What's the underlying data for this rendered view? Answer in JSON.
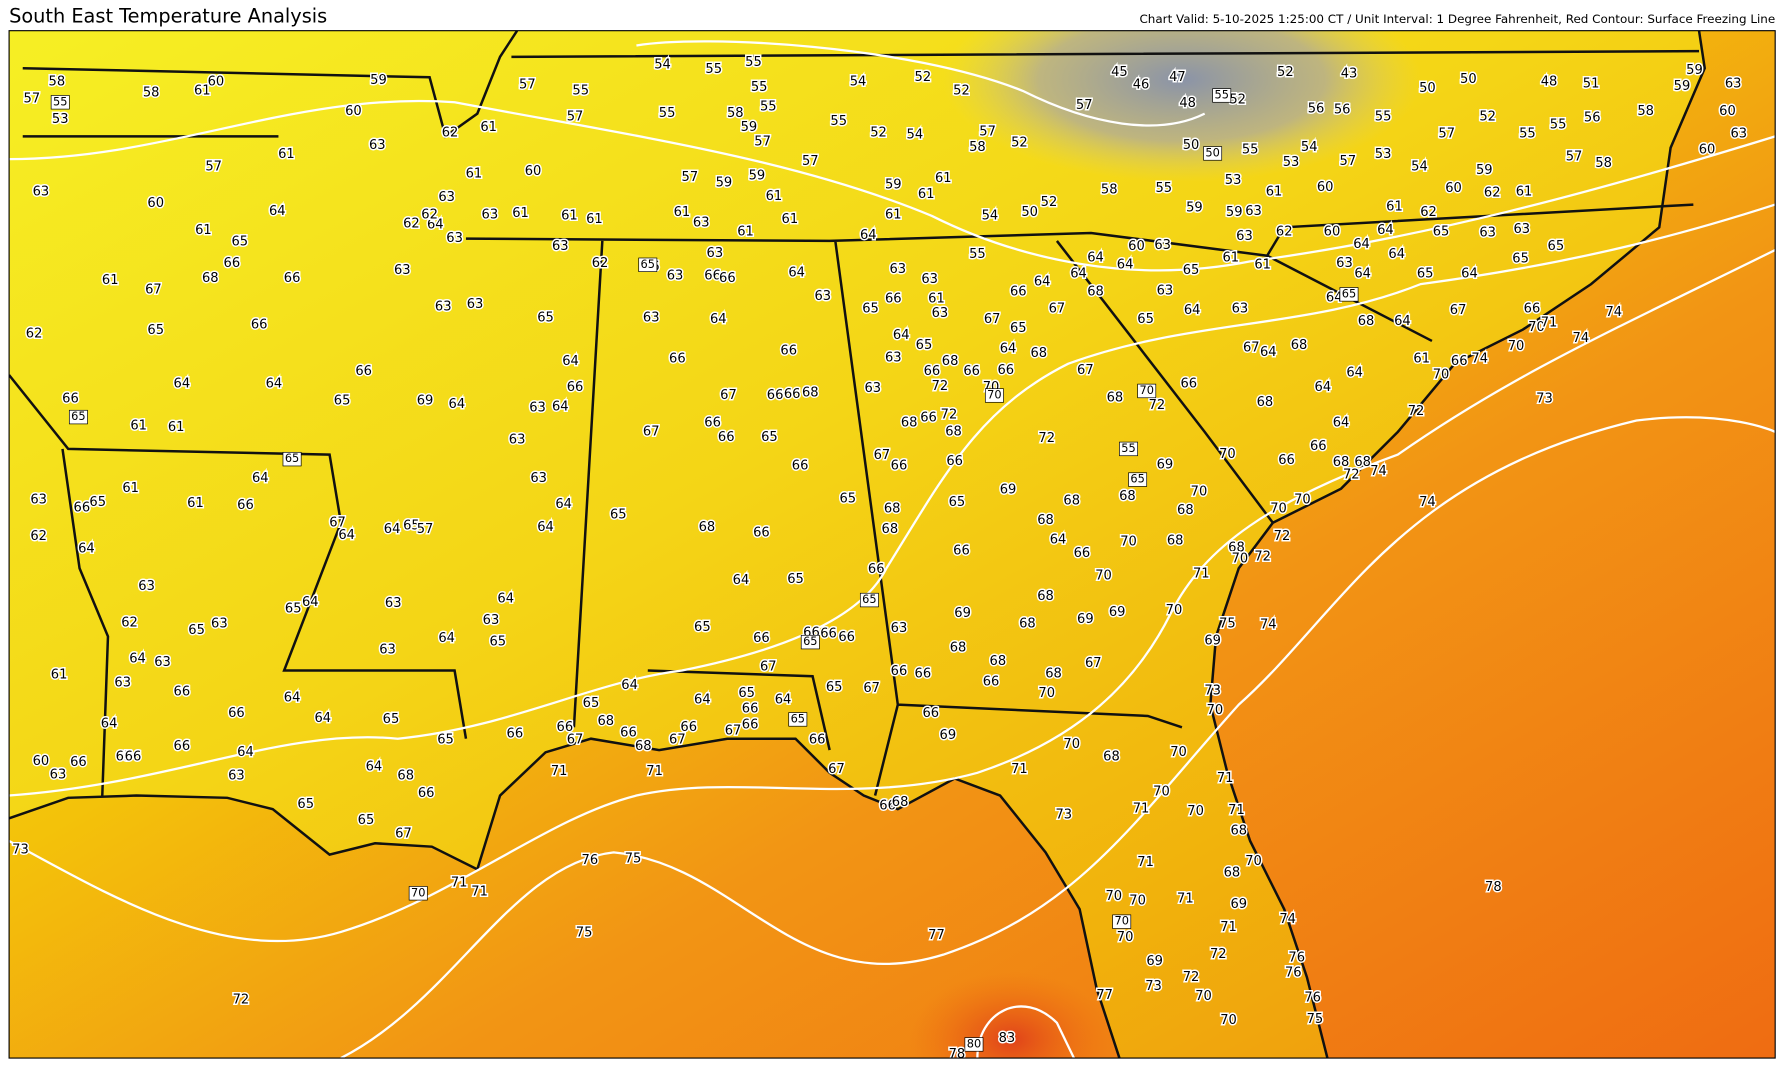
{
  "title": "South East Temperature Analysis",
  "subtitle": "Chart Valid: 5-10-2025 1:25:00 CT / Unit Interval: 1 Degree Fahrenheit, Red Contour: Surface Freezing Line",
  "station_temps": [
    58,
    57,
    53,
    58,
    61,
    60,
    59,
    60,
    57,
    55,
    54,
    55,
    55,
    55,
    54,
    52,
    52,
    45,
    46,
    47,
    48,
    52,
    52,
    43,
    50,
    50,
    48,
    51,
    59,
    63,
    59,
    60,
    63,
    60,
    58,
    56,
    55,
    55,
    52,
    57,
    55,
    56,
    56,
    54,
    53,
    55,
    50,
    53,
    54,
    59,
    57,
    58,
    57,
    57,
    52,
    58,
    57,
    54,
    52,
    55,
    57,
    57,
    59,
    58,
    55,
    55,
    57,
    61,
    62,
    57,
    61,
    63,
    63,
    60,
    64,
    61,
    65,
    66,
    68,
    67,
    61,
    66,
    66,
    65,
    62,
    64,
    64,
    66,
    65,
    69,
    64,
    63,
    64,
    63,
    66,
    64,
    65,
    63,
    63,
    63,
    64,
    63,
    62,
    62,
    63,
    61,
    60,
    63,
    61,
    61,
    61,
    61,
    63,
    57,
    59,
    59,
    61,
    61,
    61,
    63,
    66,
    62,
    63,
    63,
    66,
    66,
    64,
    63,
    64,
    63,
    66,
    67,
    67,
    66,
    66,
    65,
    66,
    66,
    66,
    68,
    66,
    65,
    67,
    66,
    63,
    63,
    65,
    64,
    65,
    66,
    63,
    63,
    61,
    63,
    64,
    61,
    61,
    61,
    59,
    55,
    54,
    50,
    52,
    58,
    55,
    59,
    59,
    63,
    53,
    61,
    60,
    61,
    62,
    60,
    62,
    61,
    63,
    62,
    60,
    64,
    64,
    65,
    63,
    63,
    65,
    65,
    64,
    65,
    64,
    64,
    63,
    61,
    61,
    60,
    63,
    64,
    64,
    64,
    64,
    66,
    67,
    68,
    63,
    65,
    64,
    63,
    65,
    67,
    64,
    68,
    64,
    68,
    64,
    67,
    66,
    70,
    71,
    74,
    74,
    70,
    74,
    70,
    66,
    61,
    64,
    64,
    68,
    66,
    68,
    72,
    67,
    68,
    64,
    65,
    67,
    66,
    66,
    68,
    66,
    72,
    66,
    68,
    72,
    68,
    70,
    72,
    66,
    69,
    73,
    72,
    64,
    66,
    66,
    68,
    68,
    74,
    72,
    70,
    70,
    70,
    69,
    70,
    68,
    68,
    68,
    74,
    72,
    72,
    68,
    70,
    71,
    70,
    68,
    70,
    70,
    66,
    64,
    68,
    65,
    68,
    68,
    66,
    66,
    75,
    74,
    69,
    73,
    70,
    68,
    69,
    69,
    68,
    69,
    68,
    68,
    66,
    68,
    67,
    70,
    63,
    66,
    66,
    67,
    66,
    69,
    70,
    68,
    70,
    71,
    70,
    70,
    71,
    68,
    71,
    73,
    71,
    70,
    68,
    71,
    74,
    69,
    71,
    71,
    70,
    70,
    70,
    69,
    72,
    72,
    73,
    70,
    77,
    76,
    76,
    76,
    75,
    70,
    78,
    77,
    83,
    78,
    75,
    76,
    75,
    71,
    71,
    72,
    73,
    71,
    71,
    67,
    66,
    68,
    66,
    68,
    67,
    66,
    67,
    66,
    65,
    66,
    64,
    66,
    67,
    66,
    68,
    65,
    64,
    64,
    65,
    66,
    65,
    64,
    68,
    66,
    67,
    65,
    65,
    63,
    64,
    66,
    66,
    65,
    66,
    66,
    60,
    63,
    64,
    61,
    63,
    64,
    63,
    66,
    65,
    63,
    62,
    63,
    64,
    62,
    63,
    66,
    65,
    61,
    61,
    66,
    64,
    61,
    61,
    66,
    65,
    64,
    64,
    64,
    65,
    67,
    64,
    64,
    65,
    57,
    63,
    63,
    64,
    63,
    65,
    64,
    64,
    63,
    64,
    65,
    68,
    66,
    64,
    65,
    65,
    66,
    67,
    66,
    66,
    66
  ],
  "contour_labels": [
    55,
    65,
    65,
    65,
    55,
    50,
    65,
    70,
    70,
    55,
    65,
    65,
    65,
    65,
    70,
    70,
    80
  ]
}
